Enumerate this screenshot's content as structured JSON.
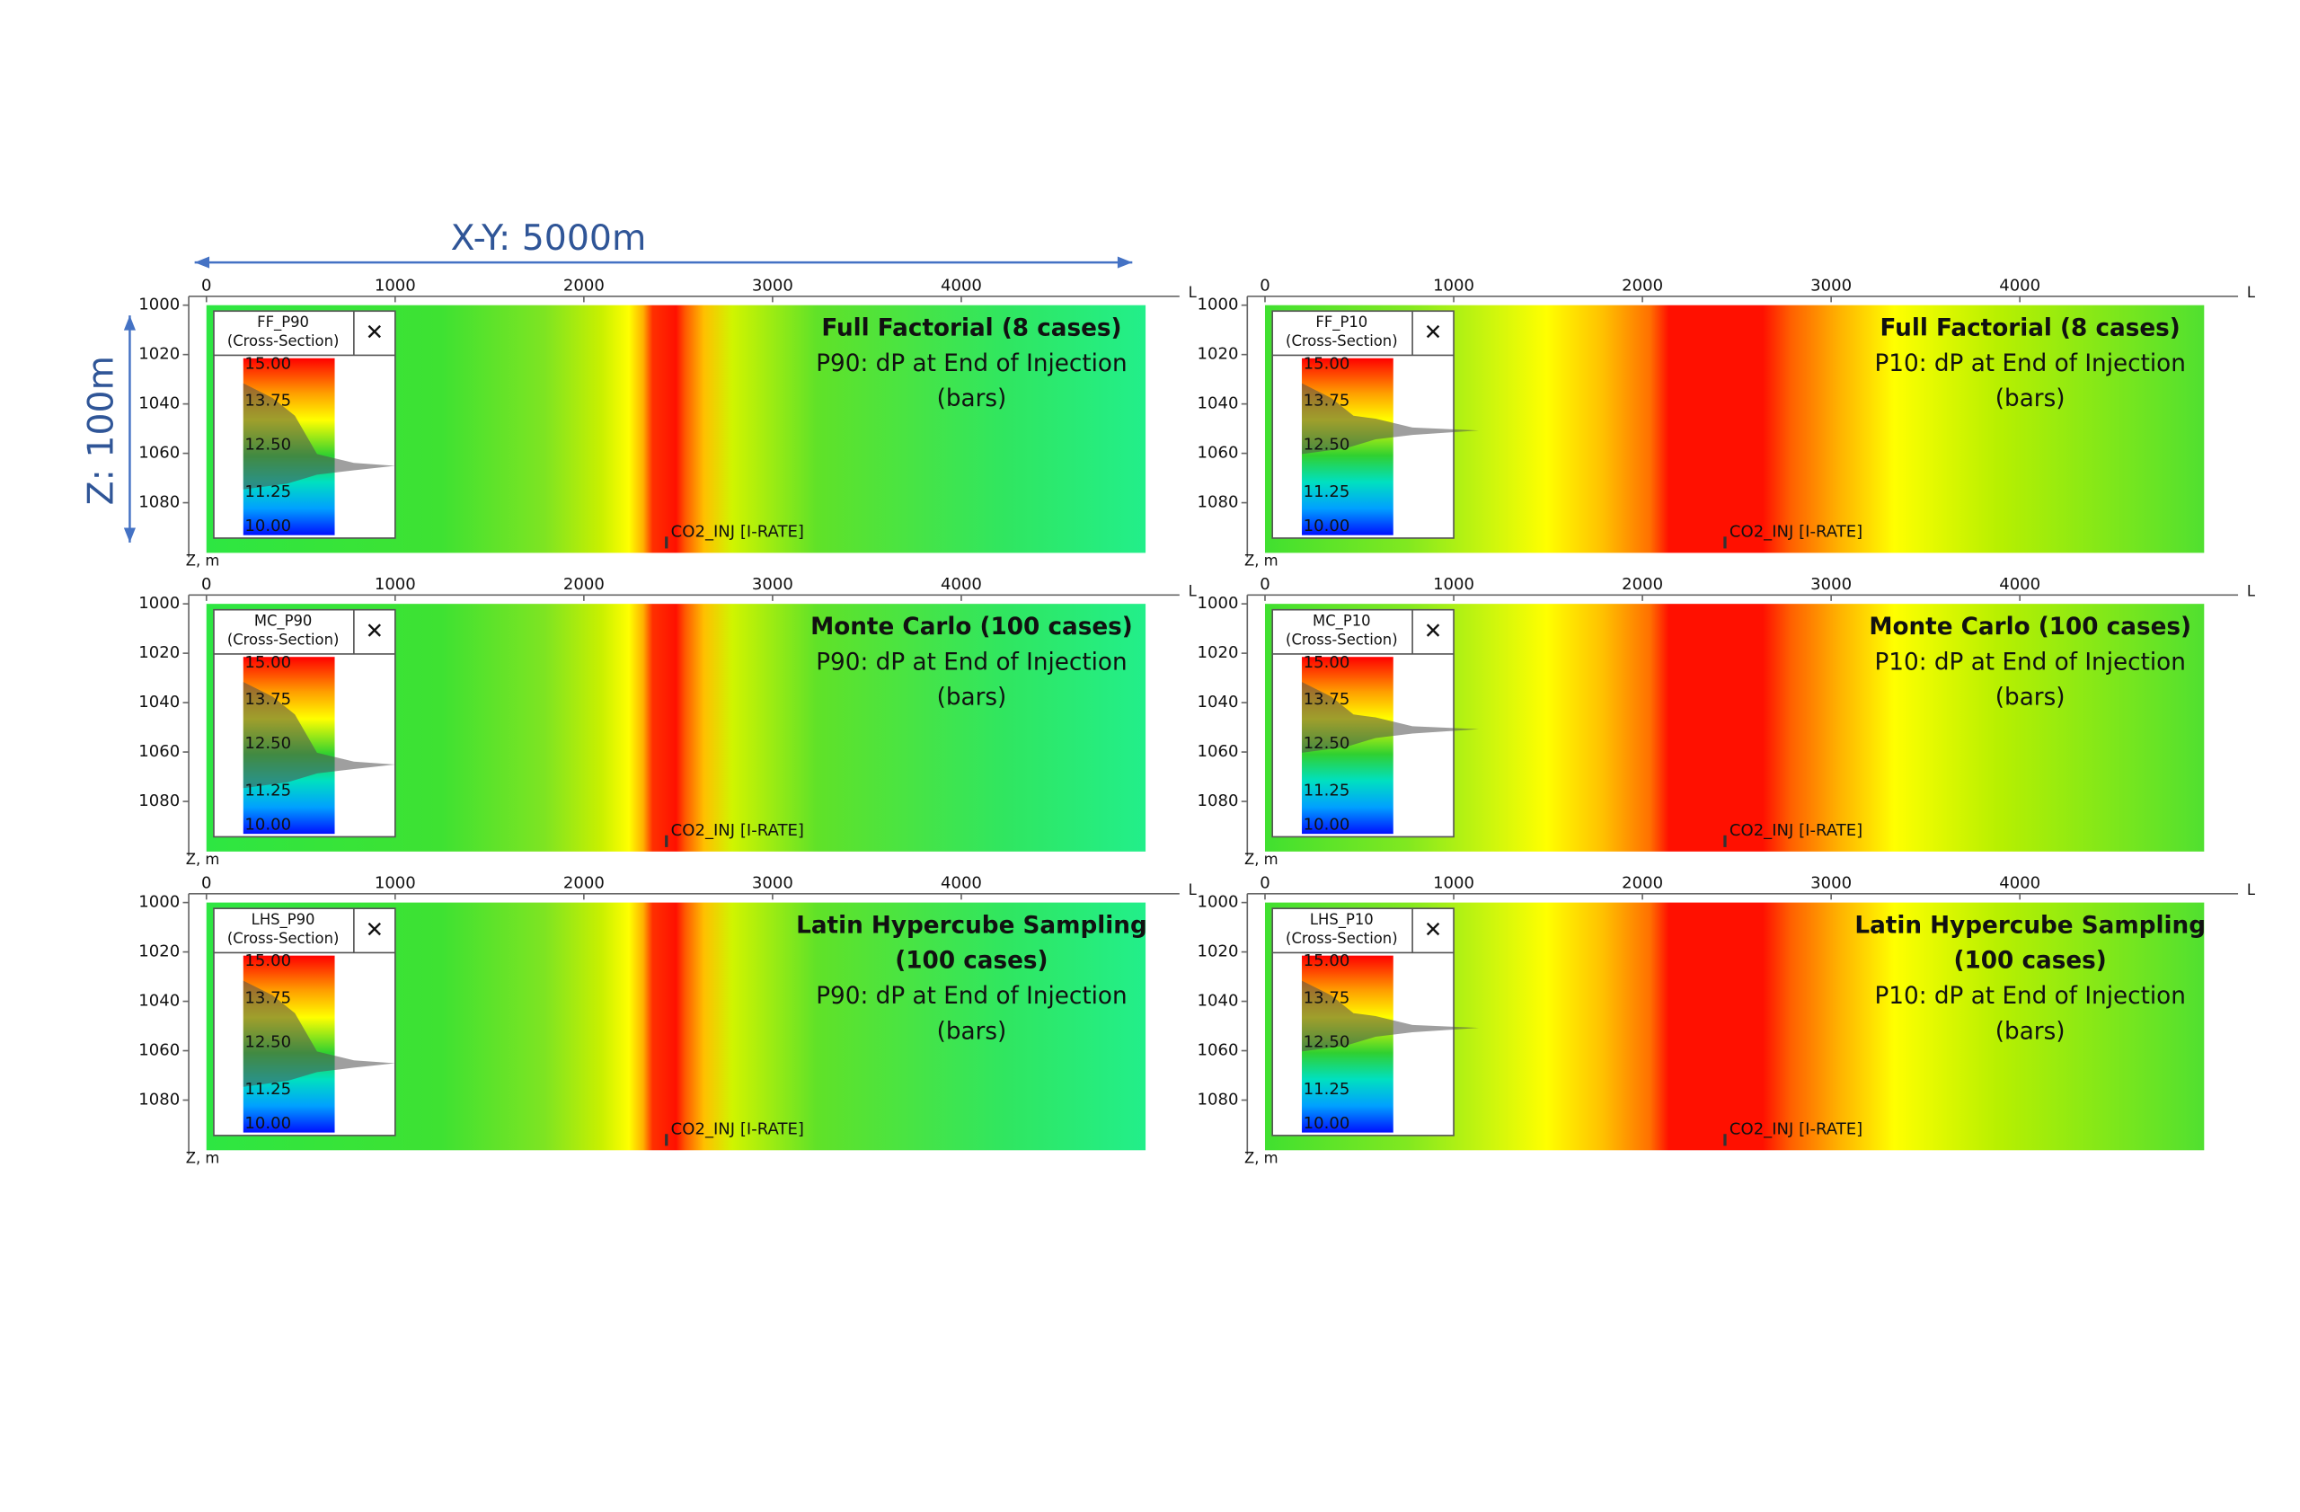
{
  "annotations": {
    "x_extent": "X-Y: 5000m",
    "z_extent": "Z: 100m"
  },
  "panels": [
    {
      "legend_title": "FF_P90",
      "legend_subtitle": "(Cross-Section)",
      "close": "✕",
      "legend_ticks": [
        "15.00",
        "13.75",
        "12.50",
        "11.25",
        "10.00"
      ],
      "title_lines": [
        "Full Factorial (8 cases)"
      ],
      "lines": [
        "P90: dP at End of Injection",
        "(bars)"
      ],
      "well_label": "CO2_INJ [I-RATE]",
      "x_ticks": [
        0,
        1000,
        2000,
        3000,
        4000
      ],
      "z_ticks": [
        1000,
        1020,
        1040,
        1060,
        1080
      ],
      "z_axis_label": "Z, m",
      "axis_end": "L"
    },
    {
      "legend_title": "FF_P10",
      "legend_subtitle": "(Cross-Section)",
      "close": "✕",
      "legend_ticks": [
        "15.00",
        "13.75",
        "12.50",
        "11.25",
        "10.00"
      ],
      "title_lines": [
        "Full Factorial (8 cases)"
      ],
      "lines": [
        "P10: dP at End of Injection",
        "(bars)"
      ],
      "well_label": "CO2_INJ [I-RATE]",
      "x_ticks": [
        0,
        1000,
        2000,
        3000,
        4000
      ],
      "z_ticks": [
        1000,
        1020,
        1040,
        1060,
        1080
      ],
      "z_axis_label": "Z, m",
      "axis_end": "L"
    },
    {
      "legend_title": "MC_P90",
      "legend_subtitle": "(Cross-Section)",
      "close": "✕",
      "legend_ticks": [
        "15.00",
        "13.75",
        "12.50",
        "11.25",
        "10.00"
      ],
      "title_lines": [
        "Monte Carlo (100 cases)"
      ],
      "lines": [
        "P90: dP at End of Injection",
        "(bars)"
      ],
      "well_label": "CO2_INJ [I-RATE]",
      "x_ticks": [
        0,
        1000,
        2000,
        3000,
        4000
      ],
      "z_ticks": [
        1000,
        1020,
        1040,
        1060,
        1080
      ],
      "z_axis_label": "Z, m",
      "axis_end": "L"
    },
    {
      "legend_title": "MC_P10",
      "legend_subtitle": "(Cross-Section)",
      "close": "✕",
      "legend_ticks": [
        "15.00",
        "13.75",
        "12.50",
        "11.25",
        "10.00"
      ],
      "title_lines": [
        "Monte Carlo (100 cases)"
      ],
      "lines": [
        "P10: dP at End of Injection",
        "(bars)"
      ],
      "well_label": "CO2_INJ [I-RATE]",
      "x_ticks": [
        0,
        1000,
        2000,
        3000,
        4000
      ],
      "z_ticks": [
        1000,
        1020,
        1040,
        1060,
        1080
      ],
      "z_axis_label": "Z, m",
      "axis_end": "L"
    },
    {
      "legend_title": "LHS_P90",
      "legend_subtitle": "(Cross-Section)",
      "close": "✕",
      "legend_ticks": [
        "15.00",
        "13.75",
        "12.50",
        "11.25",
        "10.00"
      ],
      "title_lines": [
        "Latin Hypercube Sampling",
        "(100 cases)"
      ],
      "lines": [
        "P90: dP at End of Injection",
        "(bars)"
      ],
      "well_label": "CO2_INJ [I-RATE]",
      "x_ticks": [
        0,
        1000,
        2000,
        3000,
        4000
      ],
      "z_ticks": [
        1000,
        1020,
        1040,
        1060,
        1080
      ],
      "z_axis_label": "Z, m",
      "axis_end": "L"
    },
    {
      "legend_title": "LHS_P10",
      "legend_subtitle": "(Cross-Section)",
      "close": "✕",
      "legend_ticks": [
        "15.00",
        "13.75",
        "12.50",
        "11.25",
        "10.00"
      ],
      "title_lines": [
        "Latin Hypercube Sampling",
        "(100 cases)"
      ],
      "lines": [
        "P10: dP at End of Injection",
        "(bars)"
      ],
      "well_label": "CO2_INJ [I-RATE]",
      "x_ticks": [
        0,
        1000,
        2000,
        3000,
        4000
      ],
      "z_ticks": [
        1000,
        1020,
        1040,
        1060,
        1080
      ],
      "z_axis_label": "Z, m",
      "axis_end": "L"
    }
  ]
}
